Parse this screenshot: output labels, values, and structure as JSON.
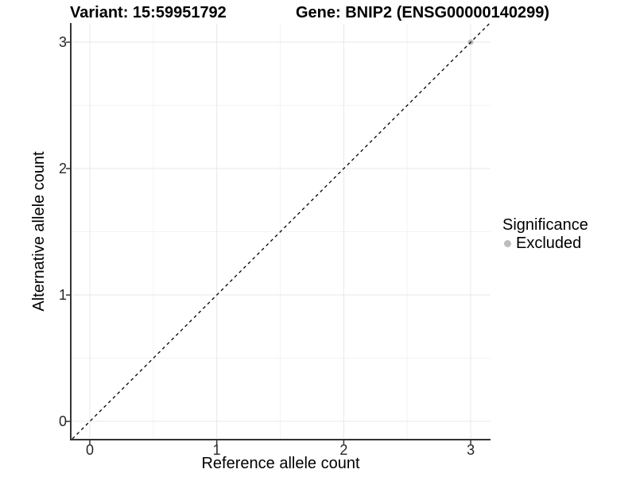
{
  "title": {
    "left": "Variant: 15:59951792",
    "right": "Gene: BNIP2 (ENSG00000140299)"
  },
  "legend": {
    "title": "Significance",
    "items": [
      {
        "label": "Excluded",
        "color": "#bdbdbd"
      }
    ]
  },
  "chart_data": {
    "type": "scatter",
    "title": "Variant: 15:59951792    Gene: BNIP2 (ENSG00000140299)",
    "xlabel": "Reference allele count",
    "ylabel": "Alternative allele count",
    "xlim": [
      -0.144,
      3.156
    ],
    "ylim": [
      -0.138,
      3.145
    ],
    "x_ticks": [
      0,
      1,
      2,
      3
    ],
    "y_ticks": [
      0,
      1,
      2,
      3
    ],
    "x_minor_ticks": [
      0.5,
      1.5,
      2.5
    ],
    "y_minor_ticks": [
      0.5,
      1.5,
      2.5
    ],
    "grid": true,
    "legend_position": "right",
    "series": [
      {
        "name": "Excluded",
        "color": "#bdbdbd",
        "points": [
          [
            3,
            3
          ]
        ]
      }
    ],
    "reference_line": {
      "kind": "abline",
      "slope": 1,
      "intercept": 0,
      "style": "dashed",
      "color": "#000000"
    }
  },
  "colors": {
    "background": "#ffffff",
    "axis_line": "#333333",
    "tick_mark": "#333333",
    "tick_label": "#262626",
    "grid_major": "#e8e8e8",
    "grid_minor": "#f3f3f3",
    "point": "#bdbdbd",
    "reference_line": "#000000"
  }
}
